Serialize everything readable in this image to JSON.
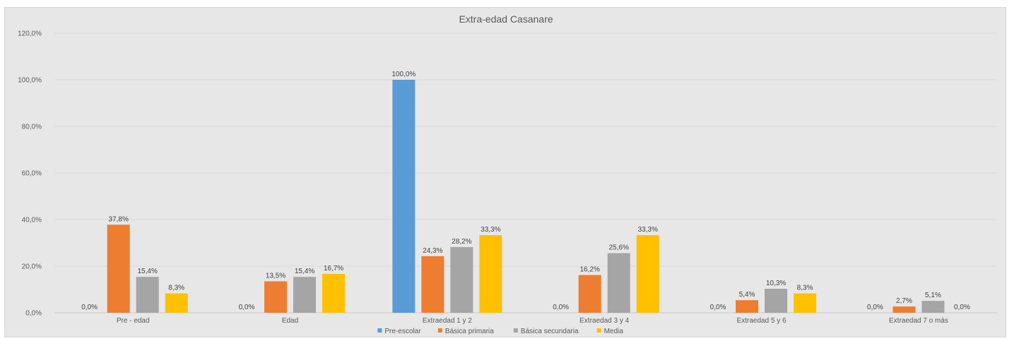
{
  "chart_data": {
    "type": "bar",
    "title": "Extra-edad Casanare",
    "xlabel": "",
    "ylabel": "",
    "ylim": [
      0,
      120
    ],
    "yticks": [
      0,
      20,
      40,
      60,
      80,
      100,
      120
    ],
    "ytick_labels": [
      "0,0%",
      "20,0%",
      "40,0%",
      "60,0%",
      "80,0%",
      "100,0%",
      "120,0%"
    ],
    "grid": true,
    "legend_position": "bottom",
    "categories": [
      "Pre - edad",
      "Edad",
      "Extraedad 1 y 2",
      "Extraedad 3 y 4",
      "Extraedad 5 y 6",
      "Extraedad 7 o más"
    ],
    "series": [
      {
        "name": "Pre-escolar",
        "color": "#5b9bd5",
        "values": [
          0.0,
          0.0,
          100.0,
          0.0,
          0.0,
          0.0
        ],
        "labels": [
          "0,0%",
          "0,0%",
          "100,0%",
          "0,0%",
          "0,0%",
          "0,0%"
        ]
      },
      {
        "name": "Básica primaria",
        "color": "#ed7d31",
        "values": [
          37.8,
          13.5,
          24.3,
          16.2,
          5.4,
          2.7
        ],
        "labels": [
          "37,8%",
          "13,5%",
          "24,3%",
          "16,2%",
          "5,4%",
          "2,7%"
        ]
      },
      {
        "name": "Básica secundaria",
        "color": "#a5a5a5",
        "values": [
          15.4,
          15.4,
          28.2,
          25.6,
          10.3,
          5.1
        ],
        "labels": [
          "15,4%",
          "15,4%",
          "28,2%",
          "25,6%",
          "10,3%",
          "5,1%"
        ]
      },
      {
        "name": "Media",
        "color": "#ffc000",
        "values": [
          8.3,
          16.7,
          33.3,
          33.3,
          8.3,
          0.0
        ],
        "labels": [
          "8,3%",
          "16,7%",
          "33,3%",
          "33,3%",
          "8,3%",
          "0,0%"
        ]
      }
    ]
  }
}
